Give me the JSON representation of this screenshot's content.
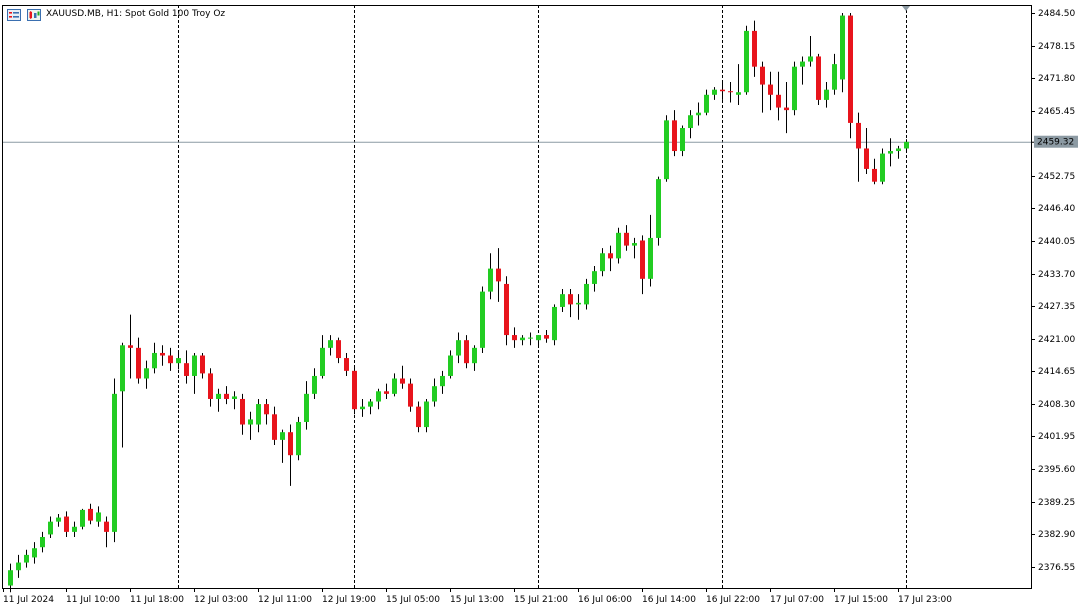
{
  "window": {
    "symbol_title": "XAUUSD.MB, H1:  Spot Gold 100 Troy Oz"
  },
  "icons": {
    "chart_list": "chart-list-icon",
    "chart_type": "chart-type-icon"
  },
  "colors": {
    "bull": "#22cc22",
    "bear": "#e8141c",
    "wick": "#000000",
    "grid": "#000000",
    "price_line": "#8c9aa3",
    "current_label_bg": "#8c9aa3",
    "current_label_text": "#ffffff"
  },
  "chart_data": {
    "type": "candlestick",
    "y_ticks": [
      "2484.50",
      "2478.15",
      "2471.80",
      "2465.45",
      "2459.32",
      "2452.75",
      "2446.40",
      "2440.05",
      "2433.70",
      "2427.35",
      "2421.00",
      "2414.65",
      "2408.30",
      "2401.95",
      "2395.60",
      "2389.25",
      "2382.90",
      "2376.55"
    ],
    "ylim": [
      2370.0,
      2485.7
    ],
    "current_price": "2459.32",
    "current_price_value": 2459.32,
    "x_labels": [
      "11 Jul 2024",
      "11 Jul 10:00",
      "11 Jul 18:00",
      "12 Jul 03:00",
      "12 Jul 11:00",
      "12 Jul 19:00",
      "15 Jul 05:00",
      "15 Jul 13:00",
      "15 Jul 21:00",
      "16 Jul 06:00",
      "16 Jul 14:00",
      "16 Jul 22:00",
      "17 Jul 07:00",
      "17 Jul 15:00",
      "17 Jul 23:00"
    ],
    "candles": [
      [
        2372.5,
        2376.8,
        2371.2,
        2375.5
      ],
      [
        2375.5,
        2378.5,
        2374.0,
        2377.0
      ],
      [
        2377.0,
        2379.5,
        2376.0,
        2378.5
      ],
      [
        2378.0,
        2381.0,
        2376.8,
        2379.8
      ],
      [
        2380.0,
        2383.0,
        2379.0,
        2382.0
      ],
      [
        2382.5,
        2386.0,
        2381.8,
        2385.0
      ],
      [
        2385.0,
        2386.5,
        2384.0,
        2385.8
      ],
      [
        2386.0,
        2387.0,
        2382.0,
        2383.0
      ],
      [
        2383.0,
        2385.0,
        2382.0,
        2384.0
      ],
      [
        2384.0,
        2387.5,
        2383.5,
        2387.3
      ],
      [
        2387.5,
        2388.5,
        2384.5,
        2385.2
      ],
      [
        2385.0,
        2388.0,
        2384.0,
        2386.8
      ],
      [
        2385.0,
        2386.0,
        2380.0,
        2383.0
      ],
      [
        2383.0,
        2413.0,
        2381.0,
        2410.0
      ],
      [
        2410.5,
        2420.0,
        2399.5,
        2419.5
      ],
      [
        2419.5,
        2425.5,
        2413.0,
        2419.0
      ],
      [
        2419.0,
        2421.0,
        2412.0,
        2413.0
      ],
      [
        2413.0,
        2416.5,
        2411.0,
        2415.0
      ],
      [
        2415.0,
        2420.0,
        2414.0,
        2418.0
      ],
      [
        2418.0,
        2419.5,
        2415.5,
        2417.5
      ],
      [
        2417.5,
        2419.0,
        2414.5,
        2416.0
      ],
      [
        2416.0,
        2418.5,
        2414.8,
        2417.0
      ],
      [
        2416.0,
        2418.5,
        2412.0,
        2413.5
      ],
      [
        2413.5,
        2418.0,
        2410.0,
        2417.5
      ],
      [
        2417.5,
        2418.0,
        2413.0,
        2414.0
      ],
      [
        2414.0,
        2415.0,
        2407.5,
        2409.0
      ],
      [
        2409.0,
        2411.0,
        2406.5,
        2410.0
      ],
      [
        2410.0,
        2411.5,
        2408.0,
        2409.0
      ],
      [
        2409.0,
        2410.5,
        2407.0,
        2409.5
      ],
      [
        2409.0,
        2410.0,
        2402.0,
        2404.0
      ],
      [
        2404.0,
        2406.5,
        2401.0,
        2405.0
      ],
      [
        2404.0,
        2409.0,
        2402.5,
        2408.0
      ],
      [
        2408.0,
        2409.0,
        2404.0,
        2406.0
      ],
      [
        2406.0,
        2407.5,
        2400.0,
        2401.0
      ],
      [
        2401.0,
        2403.0,
        2396.5,
        2402.5
      ],
      [
        2402.5,
        2404.0,
        2392.0,
        2398.0
      ],
      [
        2398.0,
        2405.5,
        2397.0,
        2404.5
      ],
      [
        2404.5,
        2412.5,
        2403.0,
        2410.0
      ],
      [
        2410.0,
        2415.0,
        2409.0,
        2413.5
      ],
      [
        2413.5,
        2421.5,
        2413.0,
        2419.0
      ],
      [
        2419.0,
        2421.5,
        2417.5,
        2420.5
      ],
      [
        2420.5,
        2421.0,
        2416.0,
        2417.0
      ],
      [
        2417.0,
        2418.0,
        2413.5,
        2414.5
      ],
      [
        2414.5,
        2415.5,
        2406.0,
        2407.0
      ],
      [
        2407.0,
        2409.0,
        2405.5,
        2407.5
      ],
      [
        2407.5,
        2409.0,
        2406.0,
        2408.5
      ],
      [
        2408.5,
        2411.0,
        2407.0,
        2410.5
      ],
      [
        2410.5,
        2412.0,
        2409.0,
        2410.0
      ],
      [
        2410.0,
        2414.0,
        2409.5,
        2413.0
      ],
      [
        2413.0,
        2415.5,
        2411.0,
        2412.0
      ],
      [
        2412.0,
        2413.0,
        2406.5,
        2407.5
      ],
      [
        2407.5,
        2408.5,
        2402.5,
        2403.5
      ],
      [
        2403.5,
        2409.0,
        2402.5,
        2408.5
      ],
      [
        2408.5,
        2413.0,
        2407.5,
        2411.5
      ],
      [
        2411.5,
        2414.5,
        2410.0,
        2413.5
      ],
      [
        2413.5,
        2418.5,
        2413.0,
        2417.5
      ],
      [
        2417.5,
        2422.0,
        2416.0,
        2420.5
      ],
      [
        2420.5,
        2421.5,
        2415.0,
        2416.0
      ],
      [
        2416.0,
        2419.5,
        2414.5,
        2419.0
      ],
      [
        2419.0,
        2431.0,
        2418.0,
        2430.0
      ],
      [
        2430.0,
        2437.5,
        2428.5,
        2434.5
      ],
      [
        2434.5,
        2438.5,
        2428.0,
        2432.0
      ],
      [
        2431.5,
        2433.0,
        2419.5,
        2421.5
      ],
      [
        2421.5,
        2423.0,
        2419.0,
        2420.5
      ],
      [
        2420.5,
        2421.5,
        2419.5,
        2421.0
      ],
      [
        2421.0,
        2422.0,
        2419.5,
        2421.0
      ],
      [
        2420.5,
        2421.5,
        2419.0,
        2421.5
      ],
      [
        2421.5,
        2422.5,
        2420.0,
        2420.8
      ],
      [
        2420.5,
        2427.5,
        2419.5,
        2427.0
      ],
      [
        2427.0,
        2430.5,
        2426.0,
        2429.5
      ],
      [
        2429.5,
        2430.5,
        2425.0,
        2427.5
      ],
      [
        2427.5,
        2429.5,
        2424.5,
        2427.8
      ],
      [
        2427.5,
        2432.5,
        2426.5,
        2431.5
      ],
      [
        2431.5,
        2435.0,
        2430.0,
        2434.0
      ],
      [
        2434.0,
        2438.5,
        2433.0,
        2437.5
      ],
      [
        2437.5,
        2439.0,
        2434.0,
        2436.5
      ],
      [
        2436.5,
        2442.5,
        2435.5,
        2441.5
      ],
      [
        2441.5,
        2443.0,
        2438.0,
        2439.0
      ],
      [
        2439.0,
        2440.5,
        2436.5,
        2439.5
      ],
      [
        2440.0,
        2441.0,
        2429.5,
        2432.5
      ],
      [
        2432.5,
        2445.0,
        2431.0,
        2440.5
      ],
      [
        2440.5,
        2452.5,
        2439.0,
        2452.0
      ],
      [
        2452.0,
        2464.5,
        2451.5,
        2463.5
      ],
      [
        2463.5,
        2465.5,
        2456.5,
        2457.5
      ],
      [
        2457.5,
        2462.5,
        2456.5,
        2462.0
      ],
      [
        2462.0,
        2465.5,
        2460.0,
        2464.5
      ],
      [
        2464.5,
        2467.0,
        2462.5,
        2465.0
      ],
      [
        2465.0,
        2469.5,
        2464.5,
        2468.5
      ],
      [
        2468.5,
        2470.0,
        2467.5,
        2469.5
      ],
      [
        2469.5,
        2471.0,
        2467.5,
        2469.2
      ],
      [
        2469.2,
        2471.0,
        2467.0,
        2469.0
      ],
      [
        2468.5,
        2474.5,
        2466.5,
        2469.0
      ],
      [
        2469.0,
        2482.0,
        2468.5,
        2481.0
      ],
      [
        2481.0,
        2483.0,
        2472.0,
        2474.0
      ],
      [
        2474.0,
        2475.0,
        2465.0,
        2470.5
      ],
      [
        2470.5,
        2473.0,
        2465.5,
        2468.5
      ],
      [
        2468.5,
        2473.0,
        2463.5,
        2466.0
      ],
      [
        2466.0,
        2471.0,
        2461.0,
        2465.5
      ],
      [
        2465.5,
        2475.0,
        2464.5,
        2474.0
      ],
      [
        2474.0,
        2476.0,
        2470.5,
        2475.0
      ],
      [
        2475.0,
        2480.0,
        2474.0,
        2476.0
      ],
      [
        2476.0,
        2476.5,
        2466.5,
        2467.5
      ],
      [
        2467.5,
        2471.0,
        2466.0,
        2469.5
      ],
      [
        2469.5,
        2476.5,
        2468.5,
        2474.5
      ],
      [
        2471.5,
        2484.5,
        2469.0,
        2484.0
      ],
      [
        2484.0,
        2484.5,
        2460.0,
        2463.0
      ],
      [
        2463.0,
        2465.0,
        2451.5,
        2458.0
      ],
      [
        2458.0,
        2462.0,
        2453.0,
        2454.0
      ],
      [
        2454.0,
        2456.0,
        2451.0,
        2451.5
      ],
      [
        2451.5,
        2458.0,
        2451.0,
        2457.0
      ],
      [
        2457.0,
        2460.0,
        2454.5,
        2457.5
      ],
      [
        2457.5,
        2458.5,
        2456.0,
        2458.0
      ],
      [
        2458.0,
        2459.8,
        2457.5,
        2459.3
      ]
    ]
  }
}
